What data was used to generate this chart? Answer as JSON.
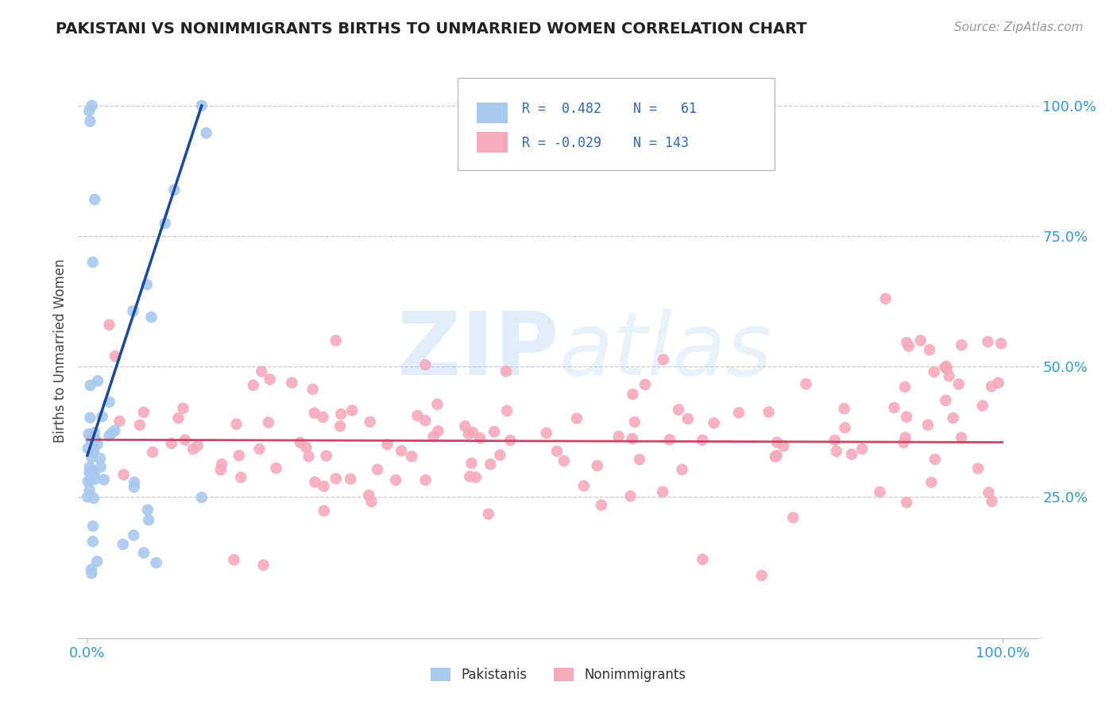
{
  "title": "PAKISTANI VS NONIMMIGRANTS BIRTHS TO UNMARRIED WOMEN CORRELATION CHART",
  "source": "Source: ZipAtlas.com",
  "ylabel": "Births to Unmarried Women",
  "blue_color": "#A8C8EE",
  "blue_edge_color": "#7AAAD0",
  "blue_line_color": "#1A4A9A",
  "pink_color": "#F5AABB",
  "pink_edge_color": "#E08898",
  "pink_line_color": "#CC4466",
  "background_color": "#FFFFFF",
  "grid_color": "#CCCCCC",
  "title_color": "#222222",
  "source_color": "#999999",
  "axis_label_color": "#3399CC",
  "watermark_color": "#DDEEFF",
  "legend_border_color": "#BBBBBB",
  "legend_text_color": "#3366BB"
}
